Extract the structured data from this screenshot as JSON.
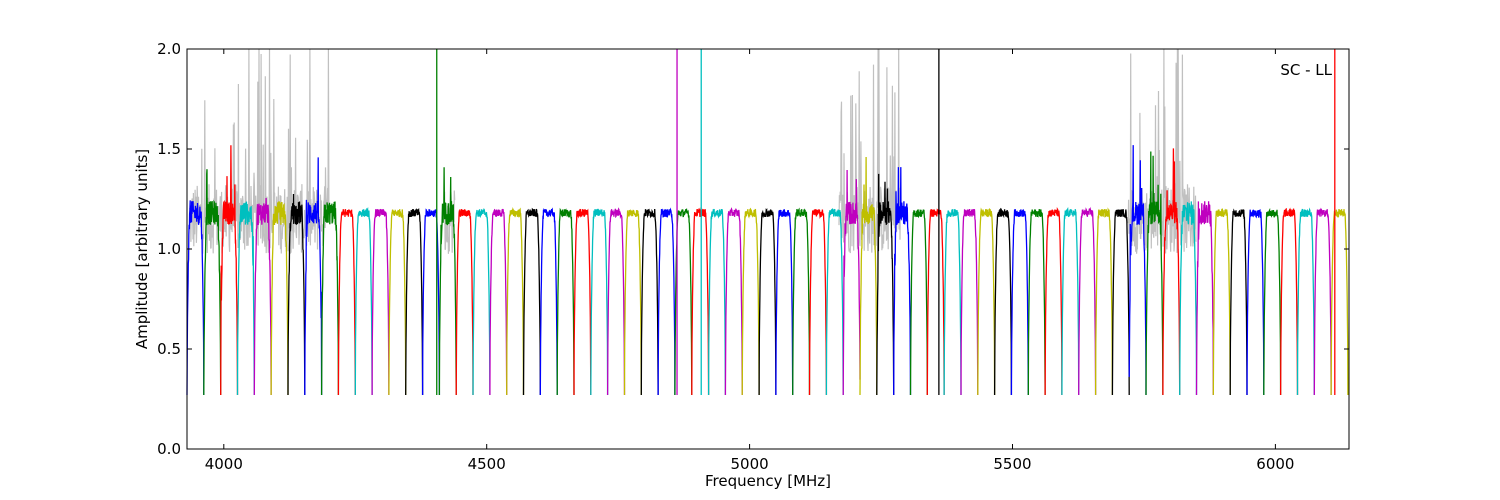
{
  "chart_data": {
    "type": "line",
    "title": "",
    "annotation": "SC - LL",
    "xlabel": "Frequency [MHz]",
    "ylabel": "Amplitude [arbitrary units]",
    "xlim": [
      3930,
      6140
    ],
    "ylim": [
      0.0,
      2.0
    ],
    "xticks": [
      4000,
      4500,
      5000,
      5500,
      6000
    ],
    "yticks": [
      0.0,
      0.5,
      1.0,
      1.5,
      2.0
    ],
    "xtick_labels": [
      "4000",
      "4500",
      "5000",
      "5500",
      "6000"
    ],
    "ytick_labels": [
      "0.0",
      "0.5",
      "1.0",
      "1.5",
      "2.0"
    ],
    "grid": false,
    "legend": "none",
    "band_colors": [
      "#0000ff",
      "#008000",
      "#ff0000",
      "#00bfbf",
      "#bf00bf",
      "#bfbf00",
      "#000000"
    ],
    "raw_color": "#c0c0c0",
    "band_width_mhz": 32,
    "band_level": 1.18,
    "band_min": 0.27,
    "spike_height": 2.0,
    "bands_start_mhz": [
      3930,
      3962,
      3994,
      4026,
      4058,
      4090,
      4122,
      4154,
      4186,
      4218,
      4250,
      4282,
      4314,
      4346,
      4378,
      4410,
      4442,
      4474,
      4506,
      4538,
      4570,
      4602,
      4634,
      4666,
      4698,
      4730,
      4762,
      4794,
      4826,
      4858,
      4890,
      4922,
      4954,
      4986,
      5018,
      5050,
      5082,
      5114,
      5146,
      5178,
      5210,
      5242,
      5274,
      5306,
      5338,
      5370,
      5402,
      5434,
      5466,
      5498,
      5530,
      5562,
      5594,
      5626,
      5658,
      5690,
      5722,
      5754,
      5786,
      5818,
      5850,
      5882,
      5914,
      5946,
      5978,
      6010,
      6042,
      6074,
      6106
    ],
    "spikes": [
      {
        "x": 4405,
        "color": "#008000"
      },
      {
        "x": 4862,
        "color": "#bf00bf"
      },
      {
        "x": 4908,
        "color": "#00bfbf"
      },
      {
        "x": 5360,
        "color": "#000000"
      },
      {
        "x": 6113,
        "color": "#ff0000"
      }
    ]
  }
}
